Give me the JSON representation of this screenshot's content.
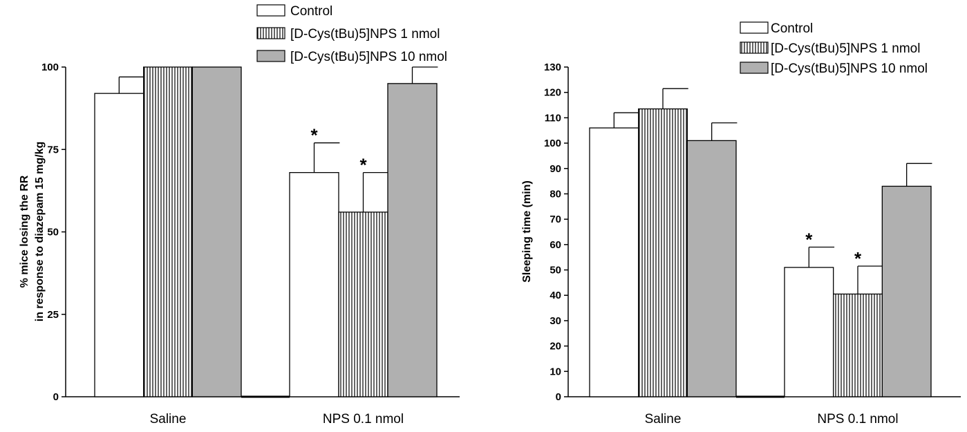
{
  "chart_data": [
    {
      "type": "bar",
      "categories": [
        "Saline",
        "NPS 0.1 nmol"
      ],
      "ylabel": [
        "% mice losing the RR",
        "in response to diazepam 15 mg/kg"
      ],
      "ylim": [
        0,
        100
      ],
      "yticks": [
        0,
        25,
        50,
        75,
        100
      ],
      "series": [
        {
          "name": "Control",
          "pattern": "empty",
          "values": [
            92,
            68
          ],
          "errors": [
            5,
            9
          ],
          "significant": [
            false,
            true
          ]
        },
        {
          "name": "[D-Cys(tBu)5]NPS 1 nmol",
          "pattern": "vertical-lines",
          "values": [
            100,
            56
          ],
          "errors": [
            0,
            12
          ],
          "significant": [
            false,
            true
          ]
        },
        {
          "name": "[D-Cys(tBu)5]NPS 10 nmol",
          "pattern": "gray",
          "values": [
            100,
            95
          ],
          "errors": [
            0,
            5
          ],
          "significant": [
            false,
            false
          ]
        }
      ],
      "significance_marker": "*",
      "grid": false,
      "legend_position": "top-right"
    },
    {
      "type": "bar",
      "categories": [
        "Saline",
        "NPS 0.1 nmol"
      ],
      "ylabel": [
        "Sleeping time (min)"
      ],
      "ylim": [
        0,
        130
      ],
      "yticks": [
        0,
        10,
        20,
        30,
        40,
        50,
        60,
        70,
        80,
        90,
        100,
        110,
        120,
        130
      ],
      "series": [
        {
          "name": "Control",
          "pattern": "empty",
          "values": [
            106,
            51
          ],
          "errors": [
            6,
            8
          ],
          "significant": [
            false,
            true
          ]
        },
        {
          "name": "[D-Cys(tBu)5]NPS 1 nmol",
          "pattern": "vertical-lines",
          "values": [
            113.5,
            40.5
          ],
          "errors": [
            8,
            11
          ],
          "significant": [
            false,
            true
          ]
        },
        {
          "name": "[D-Cys(tBu)5]NPS 10 nmol",
          "pattern": "gray",
          "values": [
            101,
            83
          ],
          "errors": [
            7,
            9
          ],
          "significant": [
            false,
            false
          ]
        }
      ],
      "significance_marker": "*",
      "grid": false,
      "legend_position": "top-right"
    }
  ],
  "colors": {
    "gray_fill": "#b0b0b0",
    "stroke": "#000000",
    "hatch_line": "#000000"
  }
}
